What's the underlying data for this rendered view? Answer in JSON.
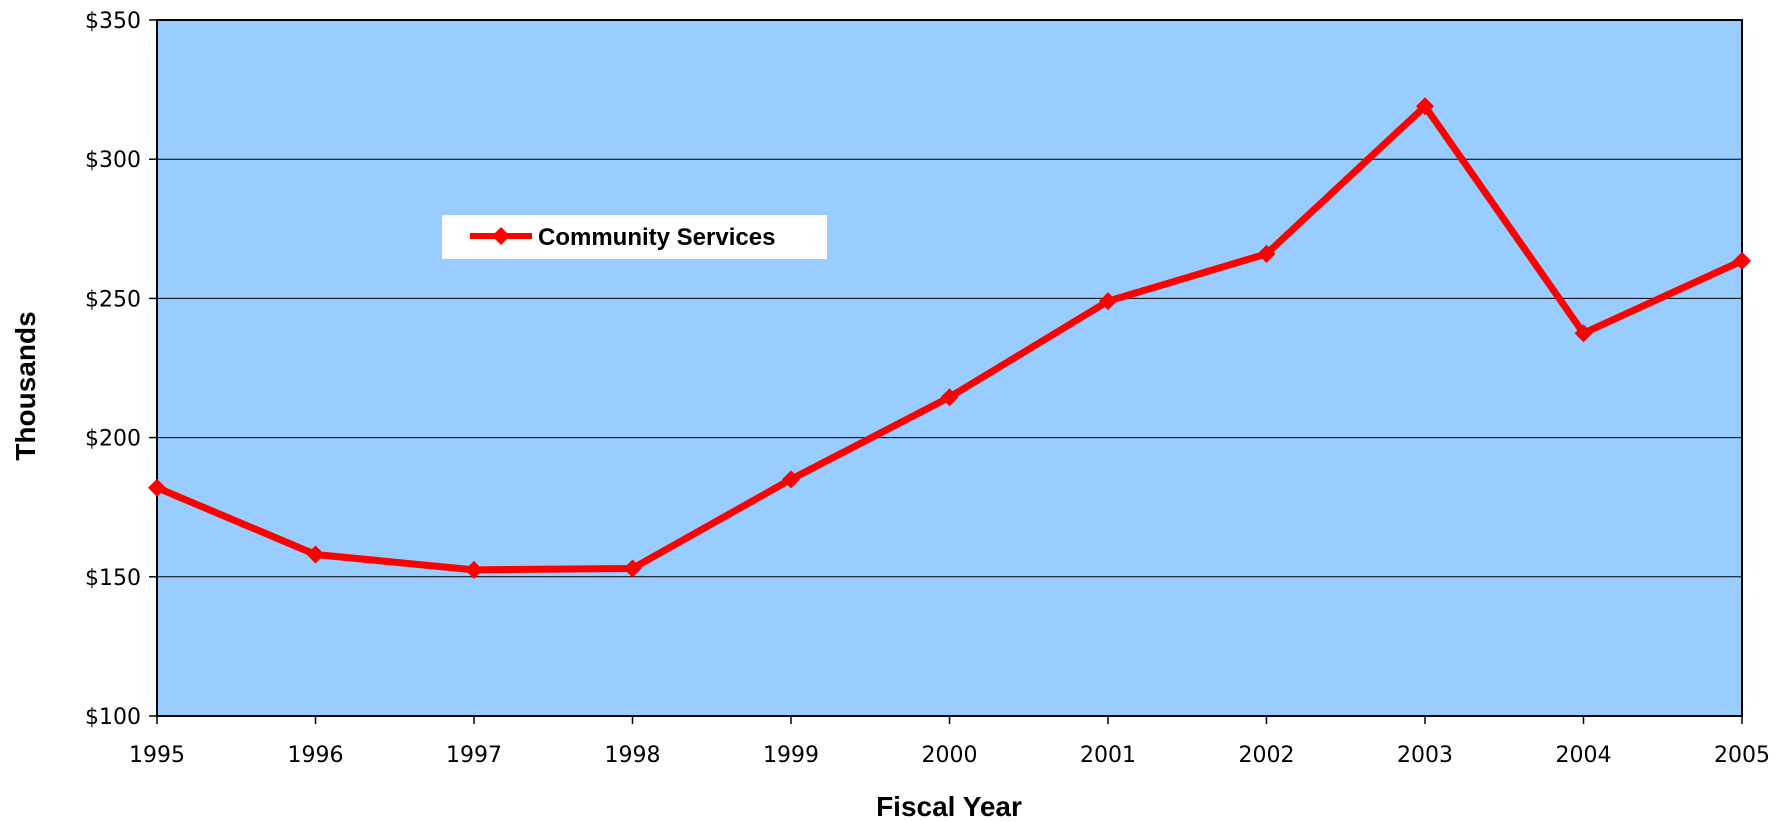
{
  "chart_data": {
    "type": "line",
    "title": "",
    "xlabel": "Fiscal Year",
    "ylabel": "Thousands",
    "categories": [
      "1995",
      "1996",
      "1997",
      "1998",
      "1999",
      "2000",
      "2001",
      "2002",
      "2003",
      "2004",
      "2005"
    ],
    "y_ticks": [
      "$100",
      "$150",
      "$200",
      "$250",
      "$300",
      "$350"
    ],
    "y_tick_values": [
      100,
      150,
      200,
      250,
      300,
      350
    ],
    "ylim": [
      100,
      350
    ],
    "grid": "horizontal",
    "legend_position": "upper-left",
    "series": [
      {
        "name": "Community Services",
        "color": "#ff0000",
        "marker": "diamond",
        "values": [
          182,
          158,
          152.5,
          153,
          185,
          214.5,
          249,
          266,
          319,
          237.5,
          263.5
        ]
      }
    ],
    "colors": {
      "plot_background": "#99ccff",
      "grid": "#000000",
      "series": "#ff0000"
    }
  }
}
